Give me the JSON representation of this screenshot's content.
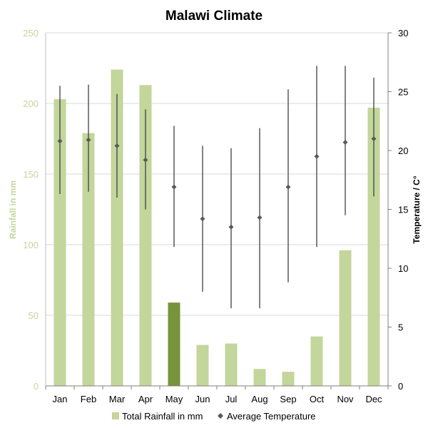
{
  "chart_data": {
    "type": "bar",
    "title": "Malawi Climate",
    "categories": [
      "Jan",
      "Feb",
      "Mar",
      "Apr",
      "May",
      "Jun",
      "Jul",
      "Aug",
      "Sep",
      "Oct",
      "Nov",
      "Dec"
    ],
    "series": [
      {
        "name": "Total Rainfall in mm",
        "type": "bar",
        "axis": "left",
        "color": "#c3d69b",
        "highlight_color": "#77933c",
        "highlight_index": 4,
        "values": [
          203,
          179,
          224,
          213,
          59,
          29,
          30,
          12,
          10,
          35,
          96,
          197
        ]
      },
      {
        "name": "Average Temperature",
        "type": "scatter",
        "axis": "right",
        "color": "#595959",
        "values": [
          20.8,
          20.9,
          20.4,
          19.2,
          16.9,
          14.2,
          13.5,
          14.3,
          16.9,
          19.5,
          20.7,
          21.0
        ],
        "high": [
          25.5,
          25.6,
          24.8,
          23.5,
          22.1,
          20.4,
          20.2,
          21.9,
          25.2,
          27.2,
          27.2,
          26.2
        ],
        "low": [
          16.3,
          16.5,
          16.0,
          15.0,
          11.8,
          8.0,
          6.6,
          6.6,
          8.8,
          11.8,
          14.5,
          16.1
        ]
      }
    ],
    "ylabel_left": "Rainfall in mm",
    "ylabel_right": "Temperature / C°",
    "ylim_left": [
      0,
      250
    ],
    "ylim_right": [
      0,
      30
    ],
    "yticks_left": [
      "0",
      "50",
      "100",
      "150",
      "200",
      "250"
    ],
    "yticks_right": [
      "0",
      "5",
      "10",
      "15",
      "20",
      "25",
      "30"
    ],
    "grid": true,
    "legend_position": "bottom"
  }
}
